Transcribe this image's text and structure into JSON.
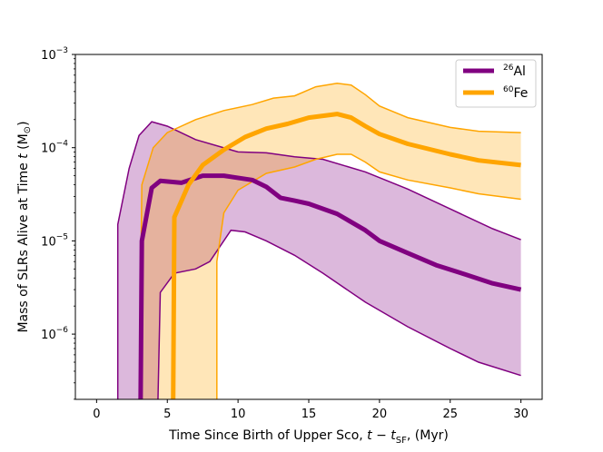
{
  "chart_data": {
    "type": "area",
    "xlabel": "Time Since Birth of Upper Sco, ",
    "xlabel_math": "t − t",
    "xlabel_sub": "SF",
    "xlabel_tail": ", (Myr)",
    "ylabel": "Mass of SLRs Alive at Time ",
    "ylabel_math": "t",
    "ylabel_tail": " (M",
    "ylabel_sun": "⊙",
    "ylabel_close": ")",
    "xlim": [
      -1.5,
      31.5
    ],
    "ylim_log10": [
      -6.7,
      -3.0
    ],
    "yscale": "log",
    "xticks": [
      {
        "value": 0,
        "label": "0"
      },
      {
        "value": 5,
        "label": "5"
      },
      {
        "value": 10,
        "label": "10"
      },
      {
        "value": 15,
        "label": "15"
      },
      {
        "value": 20,
        "label": "20"
      },
      {
        "value": 25,
        "label": "25"
      },
      {
        "value": 30,
        "label": "30"
      }
    ],
    "yticks": [
      {
        "exp": -6,
        "label_base": "10",
        "label_exp": "−6"
      },
      {
        "exp": -5,
        "label_base": "10",
        "label_exp": "−5"
      },
      {
        "exp": -4,
        "label_base": "10",
        "label_exp": "−4"
      },
      {
        "exp": -3,
        "label_base": "10",
        "label_exp": "−3"
      }
    ],
    "legend_position": "top-right",
    "series": [
      {
        "name": "26Al",
        "label_sup": "26",
        "label_main": "Al",
        "color": "#800080",
        "fill": "#d8b2d8",
        "upper": [
          [
            1.5,
            1.5e-05
          ],
          [
            2.3,
            6e-05
          ],
          [
            3,
            0.000135
          ],
          [
            3.9,
            0.00019
          ],
          [
            5,
            0.00017
          ],
          [
            7,
            0.000122
          ],
          [
            10,
            9e-05
          ],
          [
            12,
            8.8e-05
          ],
          [
            14,
            8e-05
          ],
          [
            16,
            7.5e-05
          ],
          [
            19,
            5.5e-05
          ],
          [
            22,
            3.6e-05
          ],
          [
            25,
            2.2e-05
          ],
          [
            28,
            1.35e-05
          ],
          [
            30,
            1.03e-05
          ]
        ],
        "median": [
          [
            3.1,
            1e-07
          ],
          [
            3.2,
            1e-05
          ],
          [
            3.9,
            3.7e-05
          ],
          [
            4.5,
            4.4e-05
          ],
          [
            6,
            4.2e-05
          ],
          [
            7.5,
            5e-05
          ],
          [
            9,
            5e-05
          ],
          [
            11,
            4.5e-05
          ],
          [
            12,
            3.8e-05
          ],
          [
            13,
            2.9e-05
          ],
          [
            14,
            2.7e-05
          ],
          [
            15,
            2.5e-05
          ],
          [
            17,
            1.95e-05
          ],
          [
            19,
            1.3e-05
          ],
          [
            20,
            1e-05
          ],
          [
            22,
            7.4e-06
          ],
          [
            24,
            5.5e-06
          ],
          [
            26,
            4.4e-06
          ],
          [
            28,
            3.5e-06
          ],
          [
            30,
            3e-06
          ]
        ],
        "lower": [
          [
            4.5,
            2.8e-06
          ],
          [
            5.5,
            4.5e-06
          ],
          [
            7,
            5e-06
          ],
          [
            8,
            6e-06
          ],
          [
            9.5,
            1.3e-05
          ],
          [
            10.5,
            1.25e-05
          ],
          [
            12,
            1e-05
          ],
          [
            14,
            7e-06
          ],
          [
            16,
            4.5e-06
          ],
          [
            19,
            2.2e-06
          ],
          [
            22,
            1.2e-06
          ],
          [
            25,
            7e-07
          ],
          [
            27,
            5e-07
          ],
          [
            30,
            3.6e-07
          ]
        ],
        "onset_x": 3.0,
        "lower_onset_x": 4.3
      },
      {
        "name": "60Fe",
        "label_sup": "60",
        "label_main": "Fe",
        "color": "#ffa500",
        "fill": "#ffdfa8",
        "upper": [
          [
            3,
            1e-07
          ],
          [
            3.2,
            4e-05
          ],
          [
            4,
            0.0001
          ],
          [
            5,
            0.000145
          ],
          [
            7,
            0.0002
          ],
          [
            9,
            0.00025
          ],
          [
            11,
            0.00029
          ],
          [
            12.5,
            0.00034
          ],
          [
            14,
            0.00036
          ],
          [
            15.5,
            0.00045
          ],
          [
            17,
            0.00049
          ],
          [
            18,
            0.00047
          ],
          [
            19,
            0.00037
          ],
          [
            20,
            0.00028
          ],
          [
            22,
            0.00021
          ],
          [
            25,
            0.000165
          ],
          [
            27,
            0.00015
          ],
          [
            30,
            0.000145
          ]
        ],
        "median": [
          [
            5.4,
            1e-07
          ],
          [
            5.5,
            1.8e-05
          ],
          [
            6.5,
            4e-05
          ],
          [
            7.5,
            6.5e-05
          ],
          [
            9,
            9.5e-05
          ],
          [
            10.5,
            0.00013
          ],
          [
            12,
            0.00016
          ],
          [
            13.5,
            0.00018
          ],
          [
            15,
            0.00021
          ],
          [
            17,
            0.00023
          ],
          [
            18,
            0.00021
          ],
          [
            19,
            0.00017
          ],
          [
            20,
            0.00014
          ],
          [
            22,
            0.00011
          ],
          [
            25,
            8.5e-05
          ],
          [
            27,
            7.3e-05
          ],
          [
            30,
            6.5e-05
          ]
        ],
        "lower": [
          [
            8.5,
            6e-06
          ],
          [
            9,
            2e-05
          ],
          [
            10,
            3.5e-05
          ],
          [
            12,
            5.3e-05
          ],
          [
            14,
            6.2e-05
          ],
          [
            15.5,
            7.5e-05
          ],
          [
            17,
            8.5e-05
          ],
          [
            18,
            8.5e-05
          ],
          [
            19,
            7e-05
          ],
          [
            20,
            5.5e-05
          ],
          [
            22,
            4.5e-05
          ],
          [
            25,
            3.7e-05
          ],
          [
            27,
            3.2e-05
          ],
          [
            30,
            2.8e-05
          ]
        ],
        "onset_x": 5.4,
        "lower_onset_x": 8.5
      }
    ]
  }
}
